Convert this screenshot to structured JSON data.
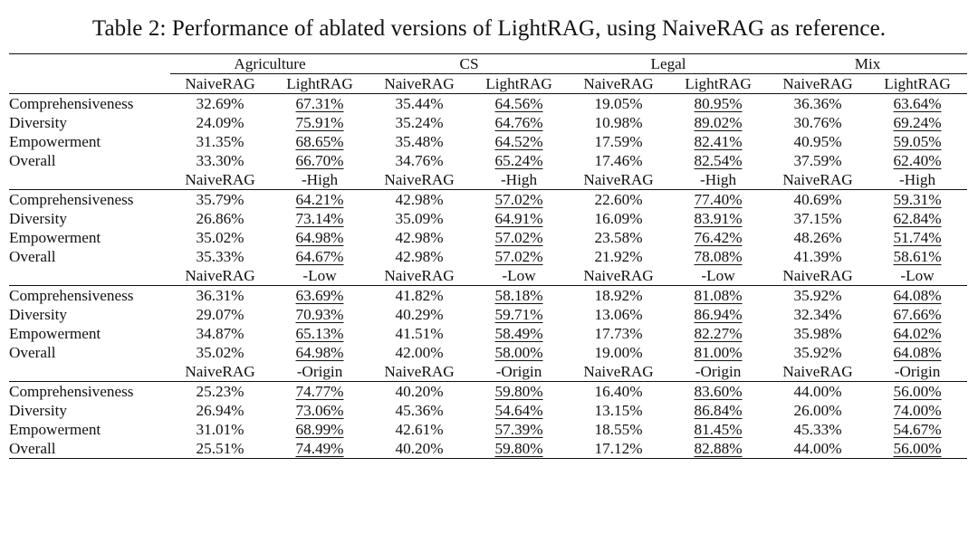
{
  "caption": "Table 2: Performance of ablated versions of LightRAG, using NaiveRAG as reference.",
  "domains": [
    "Agriculture",
    "CS",
    "Legal",
    "Mix"
  ],
  "criteria": [
    "Comprehensiveness",
    "Diversity",
    "Empowerment",
    "Overall"
  ],
  "sections": [
    {
      "baseline_label": "NaiveRAG",
      "variant_label": "LightRAG",
      "rows": [
        [
          "32.69%",
          "67.31%",
          "35.44%",
          "64.56%",
          "19.05%",
          "80.95%",
          "36.36%",
          "63.64%"
        ],
        [
          "24.09%",
          "75.91%",
          "35.24%",
          "64.76%",
          "10.98%",
          "89.02%",
          "30.76%",
          "69.24%"
        ],
        [
          "31.35%",
          "68.65%",
          "35.48%",
          "64.52%",
          "17.59%",
          "82.41%",
          "40.95%",
          "59.05%"
        ],
        [
          "33.30%",
          "66.70%",
          "34.76%",
          "65.24%",
          "17.46%",
          "82.54%",
          "37.59%",
          "62.40%"
        ]
      ]
    },
    {
      "baseline_label": "NaiveRAG",
      "variant_label": "-High",
      "rows": [
        [
          "35.79%",
          "64.21%",
          "42.98%",
          "57.02%",
          "22.60%",
          "77.40%",
          "40.69%",
          "59.31%"
        ],
        [
          "26.86%",
          "73.14%",
          "35.09%",
          "64.91%",
          "16.09%",
          "83.91%",
          "37.15%",
          "62.84%"
        ],
        [
          "35.02%",
          "64.98%",
          "42.98%",
          "57.02%",
          "23.58%",
          "76.42%",
          "48.26%",
          "51.74%"
        ],
        [
          "35.33%",
          "64.67%",
          "42.98%",
          "57.02%",
          "21.92%",
          "78.08%",
          "41.39%",
          "58.61%"
        ]
      ]
    },
    {
      "baseline_label": "NaiveRAG",
      "variant_label": "-Low",
      "rows": [
        [
          "36.31%",
          "63.69%",
          "41.82%",
          "58.18%",
          "18.92%",
          "81.08%",
          "35.92%",
          "64.08%"
        ],
        [
          "29.07%",
          "70.93%",
          "40.29%",
          "59.71%",
          "13.06%",
          "86.94%",
          "32.34%",
          "67.66%"
        ],
        [
          "34.87%",
          "65.13%",
          "41.51%",
          "58.49%",
          "17.73%",
          "82.27%",
          "35.98%",
          "64.02%"
        ],
        [
          "35.02%",
          "64.98%",
          "42.00%",
          "58.00%",
          "19.00%",
          "81.00%",
          "35.92%",
          "64.08%"
        ]
      ]
    },
    {
      "baseline_label": "NaiveRAG",
      "variant_label": "-Origin",
      "rows": [
        [
          "25.23%",
          "74.77%",
          "40.20%",
          "59.80%",
          "16.40%",
          "83.60%",
          "44.00%",
          "56.00%"
        ],
        [
          "26.94%",
          "73.06%",
          "45.36%",
          "54.64%",
          "13.15%",
          "86.84%",
          "26.00%",
          "74.00%"
        ],
        [
          "31.01%",
          "68.99%",
          "42.61%",
          "57.39%",
          "18.55%",
          "81.45%",
          "45.33%",
          "54.67%"
        ],
        [
          "25.51%",
          "74.49%",
          "40.20%",
          "59.80%",
          "17.12%",
          "82.88%",
          "44.00%",
          "56.00%"
        ]
      ]
    }
  ]
}
